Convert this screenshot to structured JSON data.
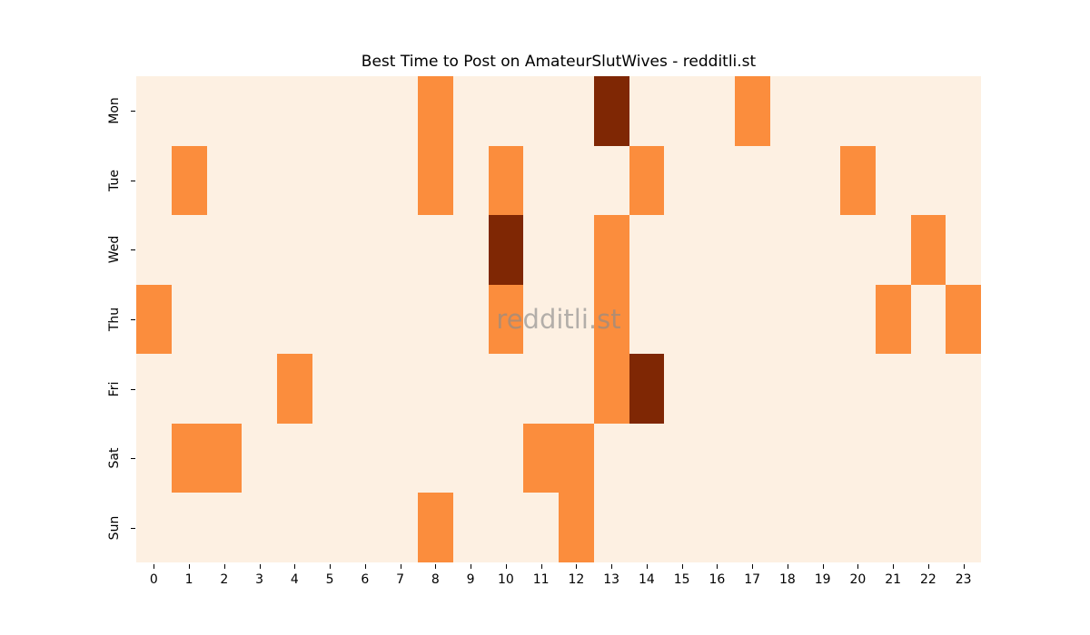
{
  "chart_data": {
    "type": "heatmap",
    "title": "Best Time to Post on AmateurSlutWives - redditli.st",
    "xlabel": "",
    "ylabel": "",
    "x_categories": [
      "0",
      "1",
      "2",
      "3",
      "4",
      "5",
      "6",
      "7",
      "8",
      "9",
      "10",
      "11",
      "12",
      "13",
      "14",
      "15",
      "16",
      "17",
      "18",
      "19",
      "20",
      "21",
      "22",
      "23"
    ],
    "y_categories": [
      "Mon",
      "Tue",
      "Wed",
      "Thu",
      "Fri",
      "Sat",
      "Sun"
    ],
    "values": [
      [
        0,
        0,
        0,
        0,
        0,
        0,
        0,
        0,
        1,
        0,
        0,
        0,
        0,
        2,
        0,
        0,
        0,
        1,
        0,
        0,
        0,
        0,
        0,
        0
      ],
      [
        0,
        1,
        0,
        0,
        0,
        0,
        0,
        0,
        1,
        0,
        1,
        0,
        0,
        0,
        1,
        0,
        0,
        0,
        0,
        0,
        1,
        0,
        0,
        0
      ],
      [
        0,
        0,
        0,
        0,
        0,
        0,
        0,
        0,
        0,
        0,
        2,
        0,
        0,
        1,
        0,
        0,
        0,
        0,
        0,
        0,
        0,
        0,
        1,
        0
      ],
      [
        1,
        0,
        0,
        0,
        0,
        0,
        0,
        0,
        0,
        0,
        1,
        0,
        0,
        1,
        0,
        0,
        0,
        0,
        0,
        0,
        0,
        1,
        0,
        1
      ],
      [
        0,
        0,
        0,
        0,
        1,
        0,
        0,
        0,
        0,
        0,
        0,
        0,
        0,
        1,
        2,
        0,
        0,
        0,
        0,
        0,
        0,
        0,
        0,
        0
      ],
      [
        0,
        1,
        1,
        0,
        0,
        0,
        0,
        0,
        0,
        0,
        0,
        1,
        1,
        0,
        0,
        0,
        0,
        0,
        0,
        0,
        0,
        0,
        0,
        0
      ],
      [
        0,
        0,
        0,
        0,
        0,
        0,
        0,
        0,
        1,
        0,
        0,
        0,
        1,
        0,
        0,
        0,
        0,
        0,
        0,
        0,
        0,
        0,
        0,
        0
      ]
    ],
    "value_colors": {
      "0": "#fdf0e2",
      "1": "#fb8d3d",
      "2": "#7f2704"
    },
    "vmin": 0,
    "vmax": 2,
    "grid": false,
    "legend_position": "none"
  },
  "watermark": {
    "text": "redditli.st",
    "color": "#8c8c8c"
  }
}
